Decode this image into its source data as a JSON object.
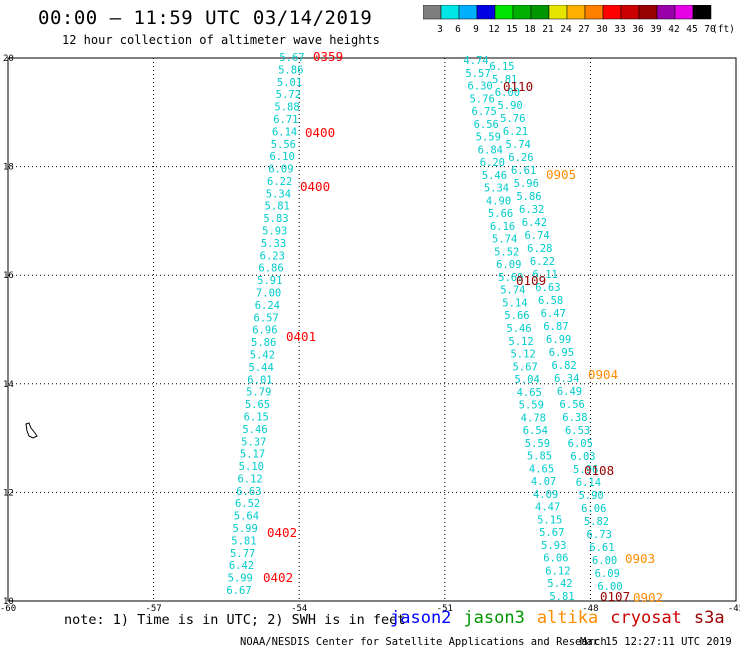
{
  "header": {
    "title": "00:00 – 11:59 UTC 03/14/2019",
    "subtitle": "12 hour collection of altimeter wave heights"
  },
  "colorbar": {
    "unit": "(ft)",
    "labels": [
      "3",
      "6",
      "9",
      "12",
      "15",
      "18",
      "21",
      "24",
      "27",
      "30",
      "33",
      "36",
      "39",
      "42",
      "45",
      "70"
    ],
    "colors": [
      "#7f7f7f",
      "#00e5e5",
      "#00b0ff",
      "#0000e5",
      "#00e500",
      "#00b000",
      "#009600",
      "#e5e500",
      "#ffb000",
      "#ff8000",
      "#ff0000",
      "#cc0000",
      "#990000",
      "#9900aa",
      "#e500e5",
      "#000000"
    ]
  },
  "chart_data": {
    "type": "scatter",
    "description_units": "longitude (deg) / latitude (deg)",
    "xlim": [
      -60,
      -45
    ],
    "ylim": [
      10,
      20
    ],
    "x_ticks": [
      "-60",
      "-57",
      "-54",
      "-51",
      "-48",
      "-45"
    ],
    "y_ticks": [
      "20",
      "18",
      "16",
      "14",
      "12",
      "10"
    ],
    "grid": true,
    "value_color": "#00cccc",
    "track_west": {
      "values": [
        "5.67",
        "5.86",
        "5.01",
        "5.72",
        "5.88",
        "6.71",
        "6.14",
        "5.56",
        "6.10",
        "6.09",
        "6.22",
        "5.34",
        "5.81",
        "5.83",
        "5.93",
        "5.33",
        "6.23",
        "6.86",
        "5.91",
        "7.00",
        "6.24",
        "6.57",
        "6.96",
        "5.86",
        "5.42",
        "5.44",
        "6.01",
        "5.79",
        "5.65",
        "6.15",
        "5.46",
        "5.37",
        "5.17",
        "5.10",
        "6.12",
        "6.63",
        "6.52",
        "5.64",
        "5.99",
        "5.81",
        "5.77",
        "6.42",
        "5.99",
        "6.67"
      ]
    },
    "track_east_1": {
      "values": [
        "4.74",
        "5.57",
        "6.30",
        "5.76",
        "6.75",
        "6.56",
        "5.59",
        "6.84",
        "6.20",
        "5.46",
        "5.34",
        "4.90",
        "5.66",
        "6.16",
        "5.74",
        "5.52",
        "6.09",
        "5.69",
        "5.74",
        "5.14",
        "5.66",
        "5.46",
        "5.12",
        "5.12",
        "5.67",
        "5.04",
        "4.65",
        "5.59",
        "4.78",
        "6.54",
        "5.59",
        "5.85",
        "4.65",
        "4.07",
        "4.09",
        "4.47",
        "5.15",
        "5.67",
        "5.93",
        "6.06",
        "6.12",
        "5.42",
        "5.81"
      ]
    },
    "track_east_2": {
      "values": [
        "6.15",
        "5.81",
        "6.00",
        "5.90",
        "5.76",
        "6.21",
        "5.74",
        "6.26",
        "6.61",
        "5.96",
        "5.86",
        "6.32",
        "6.42",
        "6.74",
        "6.28",
        "6.22",
        "6.11",
        "6.63",
        "6.58",
        "6.47",
        "6.87",
        "6.99",
        "6.95",
        "6.82",
        "6.34",
        "6.49",
        "6.56",
        "6.38",
        "6.53",
        "6.05",
        "6.03",
        "5.96",
        "6.14",
        "5.90",
        "6.06",
        "5.82",
        "6.73",
        "6.61",
        "6.00",
        "6.09",
        "6.00"
      ]
    },
    "time_labels": [
      {
        "text": "0359",
        "color": "#ff0000"
      },
      {
        "text": "0400",
        "color": "#ff0000"
      },
      {
        "text": "0400",
        "color": "#ff0000"
      },
      {
        "text": "0401",
        "color": "#ff0000"
      },
      {
        "text": "0402",
        "color": "#ff0000"
      },
      {
        "text": "0402",
        "color": "#ff0000"
      },
      {
        "text": "0110",
        "color": "#990000"
      },
      {
        "text": "0905",
        "color": "#ff8c00"
      },
      {
        "text": "0109",
        "color": "#990000"
      },
      {
        "text": "0904",
        "color": "#ff8c00"
      },
      {
        "text": "0108",
        "color": "#990000"
      },
      {
        "text": "0903",
        "color": "#ff8c00"
      },
      {
        "text": "0107",
        "color": "#990000"
      },
      {
        "text": "0902",
        "color": "#ff8c00"
      }
    ]
  },
  "note": "note: 1) Time is in UTC; 2) SWH is in feet",
  "satellites": [
    {
      "name": "jason2",
      "color": "#0000ff"
    },
    {
      "name": "jason3",
      "color": "#009600"
    },
    {
      "name": "altika",
      "color": "#ff8c00"
    },
    {
      "name": "cryosat",
      "color": "#cc0000"
    },
    {
      "name": "s3a",
      "color": "#990000"
    }
  ],
  "footer": {
    "credit": "NOAA/NESDIS Center for Satellite Applications and Research",
    "timestamp": "Mar 15 12:27:11 UTC 2019"
  }
}
